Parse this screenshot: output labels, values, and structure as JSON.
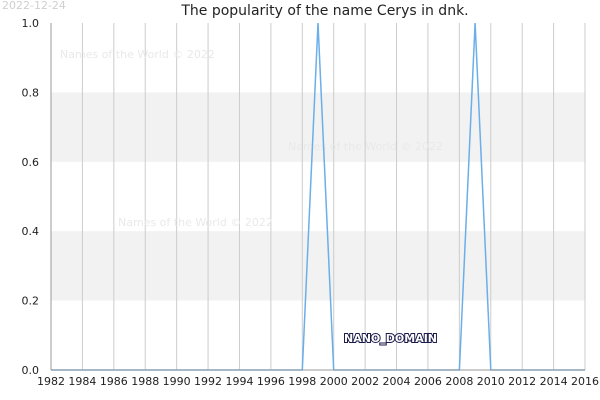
{
  "header": {
    "date_stamp": "2022-12-24"
  },
  "watermarks": [
    "Names of the World © 2022",
    "Names of the World © 2022",
    "Names of the World © 2022"
  ],
  "nano_label": "NANO_DOMAIN",
  "colors": {
    "line": "#6aaeea",
    "band": "#f2f2f2",
    "grid": "#cccccc"
  },
  "chart_data": {
    "type": "line",
    "title": "The popularity of the name Cerys in dnk.",
    "xlabel": "",
    "ylabel": "",
    "xlim": [
      1982,
      2016
    ],
    "ylim": [
      0,
      1
    ],
    "x_ticks": [
      1982,
      1984,
      1986,
      1988,
      1990,
      1992,
      1994,
      1996,
      1998,
      2000,
      2002,
      2004,
      2006,
      2008,
      2010,
      2012,
      2014,
      2016
    ],
    "y_ticks": [
      0,
      0.2,
      0.4,
      0.6,
      0.8,
      1.0
    ],
    "y_tick_labels": [
      "0.0",
      "0.2",
      "0.4",
      "0.6",
      "0.8",
      "1.0"
    ],
    "grid": true,
    "series": [
      {
        "x": [
          1982,
          1983,
          1984,
          1985,
          1986,
          1987,
          1988,
          1989,
          1990,
          1991,
          1992,
          1993,
          1994,
          1995,
          1996,
          1997,
          1998,
          1999,
          2000,
          2001,
          2002,
          2003,
          2004,
          2005,
          2006,
          2007,
          2008,
          2009,
          2010,
          2011,
          2012,
          2013,
          2014,
          2015,
          2016
        ],
        "values": [
          0,
          0,
          0,
          0,
          0,
          0,
          0,
          0,
          0,
          0,
          0,
          0,
          0,
          0,
          0,
          0,
          0,
          1,
          0,
          0,
          0,
          0,
          0,
          0,
          0,
          0,
          0,
          1,
          0,
          0,
          0,
          0,
          0,
          0,
          0
        ]
      }
    ]
  }
}
